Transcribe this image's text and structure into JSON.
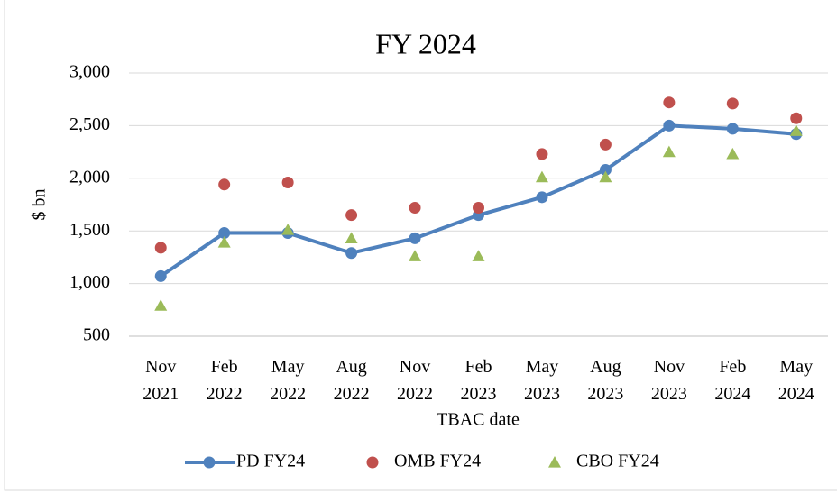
{
  "chart_data": {
    "type": "line",
    "title": "FY 2024",
    "ylabel": "$ bn",
    "xlabel": "TBAC date",
    "categories": [
      "Nov 2021",
      "Feb 2022",
      "May 2022",
      "Aug 2022",
      "Nov 2022",
      "Feb 2023",
      "May 2023",
      "Aug 2023",
      "Nov 2023",
      "Feb 2024",
      "May 2024"
    ],
    "series": [
      {
        "name": "PD FY24",
        "color": "#4f81bd",
        "marker": "line-circle",
        "values": [
          1070,
          1480,
          1480,
          1290,
          1430,
          1650,
          1820,
          2080,
          2500,
          2470,
          2420
        ]
      },
      {
        "name": "OMB FY24",
        "color": "#c0504d",
        "marker": "circle",
        "values": [
          1340,
          1940,
          1960,
          1650,
          1720,
          1720,
          2230,
          2320,
          2720,
          2710,
          2570
        ]
      },
      {
        "name": "CBO FY24",
        "color": "#9bbb59",
        "marker": "triangle",
        "values": [
          790,
          1390,
          1510,
          1430,
          1260,
          1260,
          2010,
          2010,
          2250,
          2230,
          2450
        ]
      }
    ],
    "ylim": [
      500,
      3000
    ],
    "yticks": [
      500,
      {
        "value": 1000,
        "label": "1,000"
      },
      {
        "value": 1500,
        "label": "1,500"
      },
      {
        "value": 2000,
        "label": "2,000"
      },
      {
        "value": 2500,
        "label": "2,500"
      },
      {
        "value": 3000,
        "label": "3,000"
      }
    ],
    "grid": true,
    "legend": "bottom"
  }
}
